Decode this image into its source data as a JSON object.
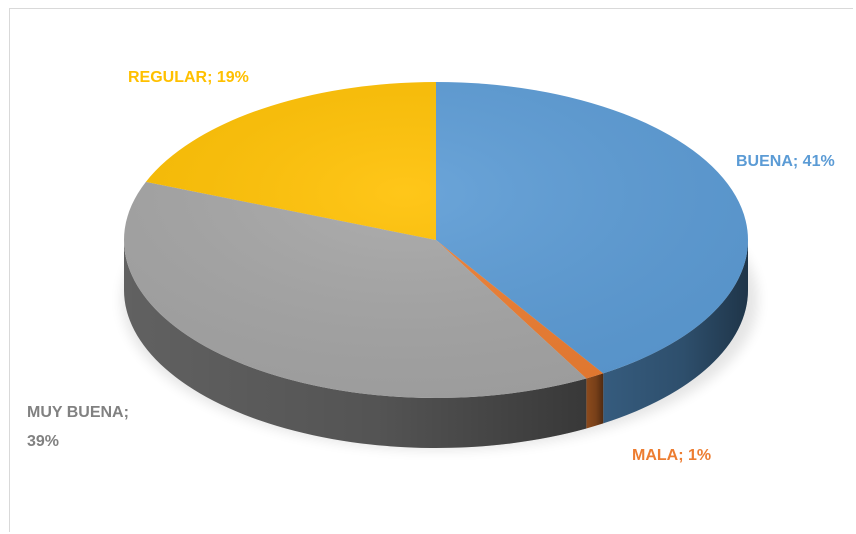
{
  "chart_data": {
    "type": "pie",
    "style": "3d",
    "categories": [
      "BUENA",
      "MALA",
      "MUY BUENA",
      "REGULAR"
    ],
    "values": [
      41,
      1,
      39,
      19
    ],
    "colors": [
      "#5b9bd5",
      "#ed7d31",
      "#a5a5a5",
      "#ffc000"
    ],
    "labels": [
      {
        "lines": [
          "BUENA; 41%"
        ]
      },
      {
        "lines": [
          "MALA; 1%"
        ]
      },
      {
        "lines": [
          "MUY BUENA;",
          "39%"
        ]
      },
      {
        "lines": [
          "REGULAR; 19%"
        ]
      }
    ],
    "title": "",
    "legend": "none"
  }
}
